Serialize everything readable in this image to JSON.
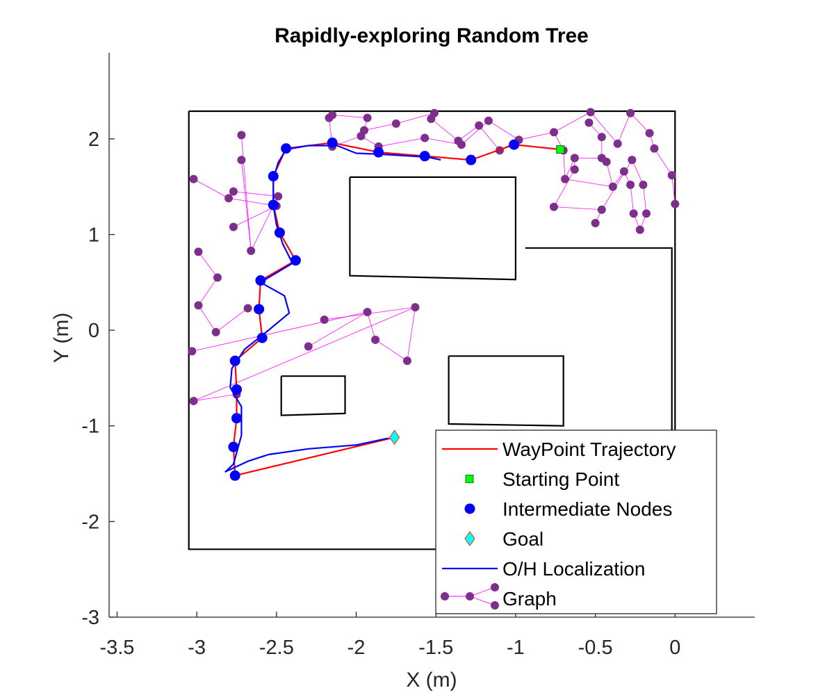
{
  "chart_data": {
    "type": "line",
    "title": "Rapidly-exploring Random Tree",
    "xlabel": "X (m)",
    "ylabel": "Y (m)",
    "xlim": [
      -3.55,
      0.5
    ],
    "ylim": [
      -3,
      2.9
    ],
    "xticks": [
      -3.5,
      -3,
      -2.5,
      -2,
      -1.5,
      -1,
      -0.5,
      0
    ],
    "xtick_labels": [
      "-3.5",
      "-3",
      "-2.5",
      "-2",
      "-1.5",
      "-1",
      "-0.5",
      "0"
    ],
    "yticks": [
      -3,
      -2,
      -1,
      0,
      1,
      2
    ],
    "ytick_labels": [
      "-3",
      "-2",
      "-1",
      "0",
      "1",
      "2"
    ],
    "grid": false,
    "legend_position": "bottom-right",
    "legend": [
      {
        "label": "WayPoint Trajectory",
        "style": "red-line"
      },
      {
        "label": "Starting Point",
        "style": "green-square"
      },
      {
        "label": "Intermediate Nodes",
        "style": "blue-dot"
      },
      {
        "label": "Goal",
        "style": "cyan-diamond"
      },
      {
        "label": "O/H Localization",
        "style": "blue-line"
      },
      {
        "label": "Graph",
        "style": "purple-graph"
      }
    ],
    "colors": {
      "waypoint": "#ff0000",
      "start": "#00ff00",
      "nodes": "#0000ff",
      "goal": "#00ffff",
      "localization": "#0000ff",
      "graph_node": "#7e2f8e",
      "graph_edge": "#ff00ff",
      "obstacle": "#000000"
    },
    "obstacles": [
      [
        [
          -3.05,
          2.29
        ],
        [
          0.0,
          2.29
        ],
        [
          0.0,
          -1.1
        ],
        [
          -0.02,
          -1.1
        ],
        [
          -0.02,
          0.86
        ],
        [
          -0.94,
          0.86
        ]
      ],
      [
        [
          -3.05,
          2.29
        ],
        [
          -3.05,
          -2.29
        ],
        [
          -1.48,
          -2.29
        ],
        [
          -1.48,
          -1.1
        ]
      ],
      [
        [
          -2.04,
          1.6
        ],
        [
          -1.0,
          1.6
        ],
        [
          -1.0,
          0.53
        ],
        [
          -2.04,
          0.57
        ],
        [
          -2.04,
          1.6
        ]
      ],
      [
        [
          -1.42,
          -0.27
        ],
        [
          -0.7,
          -0.27
        ],
        [
          -0.7,
          -1.0
        ],
        [
          -1.42,
          -0.98
        ],
        [
          -1.42,
          -0.27
        ]
      ],
      [
        [
          -2.47,
          -0.48
        ],
        [
          -2.07,
          -0.48
        ],
        [
          -2.07,
          -0.87
        ],
        [
          -2.47,
          -0.89
        ],
        [
          -2.47,
          -0.48
        ]
      ]
    ],
    "start": {
      "x": -0.72,
      "y": 1.89
    },
    "goal": {
      "x": -1.76,
      "y": -1.12
    },
    "waypoints": [
      [
        -0.72,
        1.89
      ],
      [
        -1.01,
        1.94
      ],
      [
        -1.28,
        1.78
      ],
      [
        -1.57,
        1.82
      ],
      [
        -1.86,
        1.86
      ],
      [
        -2.15,
        1.96
      ],
      [
        -2.44,
        1.9
      ],
      [
        -2.52,
        1.61
      ],
      [
        -2.52,
        1.31
      ],
      [
        -2.48,
        1.02
      ],
      [
        -2.38,
        0.73
      ],
      [
        -2.6,
        0.52
      ],
      [
        -2.61,
        0.22
      ],
      [
        -2.59,
        -0.08
      ],
      [
        -2.76,
        -0.32
      ],
      [
        -2.75,
        -0.62
      ],
      [
        -2.75,
        -0.92
      ],
      [
        -2.77,
        -1.22
      ],
      [
        -2.76,
        -1.52
      ],
      [
        -1.76,
        -1.12
      ]
    ],
    "intermediate_nodes": [
      [
        -1.01,
        1.94
      ],
      [
        -1.28,
        1.78
      ],
      [
        -1.57,
        1.82
      ],
      [
        -1.86,
        1.86
      ],
      [
        -2.15,
        1.96
      ],
      [
        -2.44,
        1.9
      ],
      [
        -2.52,
        1.61
      ],
      [
        -2.52,
        1.31
      ],
      [
        -2.48,
        1.02
      ],
      [
        -2.38,
        0.73
      ],
      [
        -2.6,
        0.52
      ],
      [
        -2.61,
        0.22
      ],
      [
        -2.59,
        -0.08
      ],
      [
        -2.76,
        -0.32
      ],
      [
        -2.75,
        -0.62
      ],
      [
        -2.75,
        -0.92
      ],
      [
        -2.77,
        -1.22
      ],
      [
        -2.76,
        -1.52
      ]
    ],
    "localization": [
      [
        -1.47,
        1.78
      ],
      [
        -1.55,
        1.81
      ],
      [
        -1.85,
        1.84
      ],
      [
        -2.0,
        1.85
      ],
      [
        -2.12,
        1.93
      ],
      [
        -2.3,
        1.93
      ],
      [
        -2.44,
        1.89
      ],
      [
        -2.49,
        1.75
      ],
      [
        -2.52,
        1.58
      ],
      [
        -2.52,
        1.3
      ],
      [
        -2.5,
        1.1
      ],
      [
        -2.46,
        0.9
      ],
      [
        -2.4,
        0.7
      ],
      [
        -2.6,
        0.5
      ],
      [
        -2.45,
        0.36
      ],
      [
        -2.42,
        0.18
      ],
      [
        -2.55,
        0.0
      ],
      [
        -2.7,
        -0.2
      ],
      [
        -2.78,
        -0.4
      ],
      [
        -2.79,
        -0.6
      ],
      [
        -2.72,
        -0.8
      ],
      [
        -2.72,
        -1.1
      ],
      [
        -2.77,
        -1.4
      ],
      [
        -2.82,
        -1.48
      ],
      [
        -2.68,
        -1.37
      ],
      [
        -2.55,
        -1.3
      ],
      [
        -2.3,
        -1.24
      ],
      [
        -2.0,
        -1.2
      ],
      [
        -1.8,
        -1.13
      ]
    ],
    "graph_nodes": [
      [
        -3.02,
        1.58
      ],
      [
        -2.8,
        1.38
      ],
      [
        -2.77,
        1.45
      ],
      [
        -2.77,
        1.08
      ],
      [
        -2.72,
        2.04
      ],
      [
        -2.72,
        1.78
      ],
      [
        -2.66,
        0.83
      ],
      [
        -2.68,
        0.23
      ],
      [
        -2.75,
        -0.67
      ],
      [
        -2.5,
        1.3
      ],
      [
        -2.49,
        1.4
      ],
      [
        -2.99,
        0.82
      ],
      [
        -2.87,
        0.55
      ],
      [
        -2.99,
        0.26
      ],
      [
        -2.88,
        -0.02
      ],
      [
        -3.03,
        -0.22
      ],
      [
        -3.02,
        -0.74
      ],
      [
        -2.3,
        -0.17
      ],
      [
        -2.2,
        0.11
      ],
      [
        -1.93,
        0.19
      ],
      [
        -1.63,
        0.24
      ],
      [
        -1.88,
        -0.1
      ],
      [
        -1.68,
        -0.32
      ],
      [
        -2.17,
        2.22
      ],
      [
        -2.15,
        2.25
      ],
      [
        -2.15,
        1.92
      ],
      [
        -1.93,
        2.22
      ],
      [
        -1.97,
        2.03
      ],
      [
        -1.95,
        2.09
      ],
      [
        -1.86,
        1.92
      ],
      [
        -1.75,
        2.16
      ],
      [
        -1.51,
        2.27
      ],
      [
        -1.53,
        2.21
      ],
      [
        -1.57,
        2.01
      ],
      [
        -1.36,
        1.98
      ],
      [
        -1.34,
        1.94
      ],
      [
        -1.23,
        2.14
      ],
      [
        -1.17,
        2.19
      ],
      [
        -1.1,
        1.88
      ],
      [
        -0.98,
        1.99
      ],
      [
        -0.76,
        2.07
      ],
      [
        -0.7,
        1.88
      ],
      [
        -0.69,
        1.58
      ],
      [
        -0.63,
        1.8
      ],
      [
        -0.63,
        1.68
      ],
      [
        -0.76,
        1.29
      ],
      [
        -0.54,
        2.17
      ],
      [
        -0.53,
        2.28
      ],
      [
        -0.46,
        2.02
      ],
      [
        -0.5,
        1.12
      ],
      [
        -0.46,
        1.8
      ],
      [
        -0.43,
        1.76
      ],
      [
        -0.46,
        1.26
      ],
      [
        -0.39,
        1.5
      ],
      [
        -0.36,
        1.95
      ],
      [
        -0.32,
        1.66
      ],
      [
        -0.28,
        2.27
      ],
      [
        -0.28,
        1.52
      ],
      [
        -0.27,
        1.78
      ],
      [
        -0.26,
        1.22
      ],
      [
        -0.22,
        1.05
      ],
      [
        -0.2,
        1.52
      ],
      [
        -0.18,
        1.22
      ],
      [
        -0.16,
        2.06
      ],
      [
        -0.13,
        1.9
      ],
      [
        -0.02,
        1.62
      ],
      [
        0.0,
        1.32
      ]
    ],
    "graph_edges": [
      [
        0,
        1
      ],
      [
        1,
        9
      ],
      [
        2,
        10
      ],
      [
        3,
        9
      ],
      [
        4,
        6
      ],
      [
        5,
        6
      ],
      [
        6,
        10
      ],
      [
        7,
        14
      ],
      [
        8,
        16
      ],
      [
        11,
        12
      ],
      [
        12,
        13
      ],
      [
        13,
        14
      ],
      [
        15,
        19
      ],
      [
        16,
        20
      ],
      [
        17,
        19
      ],
      [
        18,
        20
      ],
      [
        19,
        21
      ],
      [
        20,
        22
      ],
      [
        21,
        22
      ],
      [
        23,
        25
      ],
      [
        24,
        26
      ],
      [
        25,
        27
      ],
      [
        26,
        28
      ],
      [
        27,
        29
      ],
      [
        28,
        30
      ],
      [
        29,
        33
      ],
      [
        30,
        31
      ],
      [
        31,
        32
      ],
      [
        32,
        34
      ],
      [
        33,
        35
      ],
      [
        34,
        36
      ],
      [
        35,
        37
      ],
      [
        36,
        38
      ],
      [
        37,
        39
      ],
      [
        38,
        39
      ],
      [
        39,
        40
      ],
      [
        40,
        41
      ],
      [
        41,
        42
      ],
      [
        42,
        43
      ],
      [
        43,
        44
      ],
      [
        44,
        45
      ],
      [
        40,
        47
      ],
      [
        46,
        48
      ],
      [
        47,
        54
      ],
      [
        48,
        50
      ],
      [
        50,
        51
      ],
      [
        51,
        53
      ],
      [
        53,
        55
      ],
      [
        55,
        57
      ],
      [
        57,
        59
      ],
      [
        59,
        60
      ],
      [
        60,
        62
      ],
      [
        54,
        56
      ],
      [
        56,
        63
      ],
      [
        63,
        64
      ],
      [
        64,
        65
      ],
      [
        65,
        66
      ],
      [
        49,
        52
      ],
      [
        52,
        58
      ],
      [
        58,
        61
      ],
      [
        43,
        50
      ],
      [
        42,
        53
      ],
      [
        45,
        52
      ],
      [
        61,
        62
      ]
    ]
  }
}
